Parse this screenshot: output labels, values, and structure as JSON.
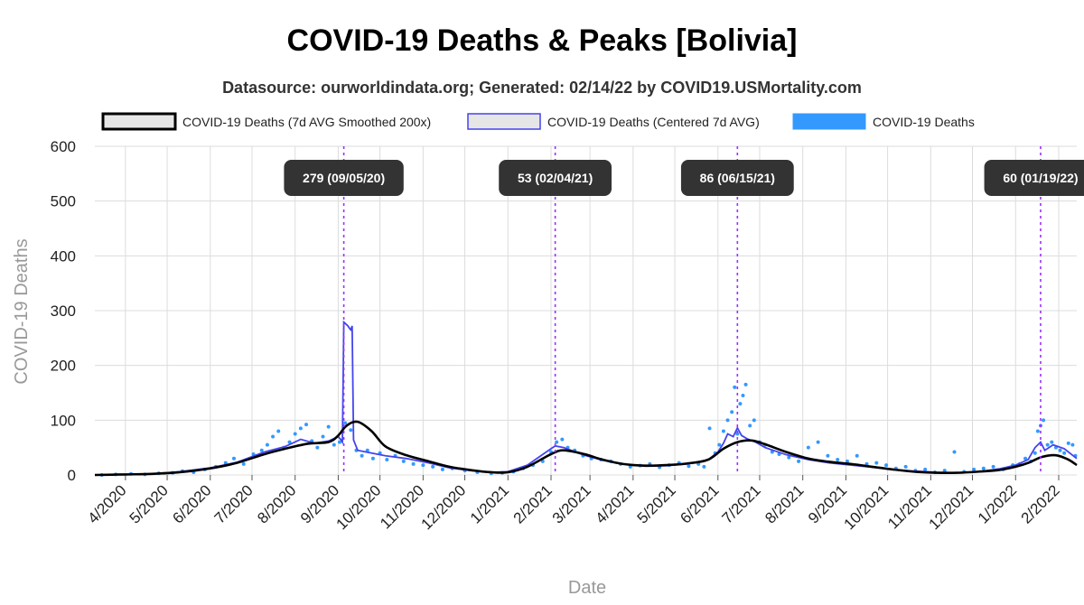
{
  "chart_data": {
    "type": "line",
    "title": "COVID-19 Deaths & Peaks [Bolivia]",
    "subtitle": "Datasource: ourworldindata.org; Generated: 02/14/22 by COVID19.USMortality.com",
    "xlabel": "Date",
    "ylabel": "COVID-19 Deaths",
    "ylim": [
      0,
      600
    ],
    "yticks": [
      0,
      100,
      200,
      300,
      400,
      500,
      600
    ],
    "xlim": [
      "2020-03-10",
      "2022-02-14"
    ],
    "xticks": [
      {
        "date": "2020-04-01",
        "label": "4/2020"
      },
      {
        "date": "2020-05-01",
        "label": "5/2020"
      },
      {
        "date": "2020-06-01",
        "label": "6/2020"
      },
      {
        "date": "2020-07-01",
        "label": "7/2020"
      },
      {
        "date": "2020-08-01",
        "label": "8/2020"
      },
      {
        "date": "2020-09-01",
        "label": "9/2020"
      },
      {
        "date": "2020-10-01",
        "label": "10/2020"
      },
      {
        "date": "2020-11-01",
        "label": "11/2020"
      },
      {
        "date": "2020-12-01",
        "label": "12/2020"
      },
      {
        "date": "2021-01-01",
        "label": "1/2021"
      },
      {
        "date": "2021-02-01",
        "label": "2/2021"
      },
      {
        "date": "2021-03-01",
        "label": "3/2021"
      },
      {
        "date": "2021-04-01",
        "label": "4/2021"
      },
      {
        "date": "2021-05-01",
        "label": "5/2021"
      },
      {
        "date": "2021-06-01",
        "label": "6/2021"
      },
      {
        "date": "2021-07-01",
        "label": "7/2021"
      },
      {
        "date": "2021-08-01",
        "label": "8/2021"
      },
      {
        "date": "2021-09-01",
        "label": "9/2021"
      },
      {
        "date": "2021-10-01",
        "label": "10/2021"
      },
      {
        "date": "2021-11-01",
        "label": "11/2021"
      },
      {
        "date": "2021-12-01",
        "label": "12/2021"
      },
      {
        "date": "2022-01-01",
        "label": "1/2022"
      },
      {
        "date": "2022-02-01",
        "label": "2/2022"
      }
    ],
    "grid": true,
    "legend": {
      "placement": "top",
      "entries": [
        {
          "label": "COVID-19 Deaths (7d AVG Smoothed 200x)",
          "color": "#000000",
          "fill": "#e6e6e6"
        },
        {
          "label": "COVID-19 Deaths (Centered 7d AVG)",
          "color": "#4444ee",
          "fill": "#e6e6e6"
        },
        {
          "label": "COVID-19 Deaths",
          "color": "#3399ff",
          "fill": "#3399ff"
        }
      ]
    },
    "peaks": [
      {
        "date": "2020-09-05",
        "value": 279,
        "label": "279 (09/05/20)"
      },
      {
        "date": "2021-02-04",
        "value": 53,
        "label": "53 (02/04/21)"
      },
      {
        "date": "2021-06-15",
        "value": 86,
        "label": "86 (06/15/21)"
      },
      {
        "date": "2022-01-19",
        "value": 60,
        "label": "60 (01/19/22)"
      }
    ],
    "series": [
      {
        "name": "COVID-19 Deaths (7d AVG Smoothed 200x)",
        "style": "smooth",
        "color": "#000000",
        "x": [
          "2020-03-10",
          "2020-04-01",
          "2020-04-20",
          "2020-05-10",
          "2020-06-01",
          "2020-06-20",
          "2020-07-10",
          "2020-07-25",
          "2020-08-10",
          "2020-08-25",
          "2020-09-01",
          "2020-09-07",
          "2020-09-15",
          "2020-09-25",
          "2020-10-05",
          "2020-10-20",
          "2020-11-05",
          "2020-11-20",
          "2020-12-05",
          "2020-12-20",
          "2021-01-01",
          "2021-01-15",
          "2021-02-01",
          "2021-02-10",
          "2021-02-25",
          "2021-03-10",
          "2021-03-25",
          "2021-04-10",
          "2021-04-25",
          "2021-05-10",
          "2021-05-25",
          "2021-06-05",
          "2021-06-15",
          "2021-06-25",
          "2021-07-05",
          "2021-07-20",
          "2021-08-05",
          "2021-08-20",
          "2021-09-05",
          "2021-09-20",
          "2021-10-05",
          "2021-10-20",
          "2021-11-05",
          "2021-11-20",
          "2021-12-05",
          "2021-12-20",
          "2022-01-01",
          "2022-01-10",
          "2022-01-20",
          "2022-01-30",
          "2022-02-08",
          "2022-02-14"
        ],
        "y": [
          0,
          1,
          2,
          5,
          12,
          22,
          38,
          48,
          57,
          60,
          72,
          90,
          97,
          80,
          52,
          36,
          25,
          15,
          9,
          5,
          5,
          15,
          38,
          45,
          38,
          28,
          20,
          17,
          18,
          21,
          28,
          48,
          60,
          63,
          56,
          42,
          30,
          24,
          20,
          15,
          10,
          6,
          4,
          4,
          6,
          9,
          15,
          22,
          33,
          36,
          28,
          18
        ]
      },
      {
        "name": "COVID-19 Deaths (Centered 7d AVG)",
        "style": "linear",
        "color": "#4444ee",
        "x": [
          "2020-03-10",
          "2020-04-01",
          "2020-04-20",
          "2020-05-10",
          "2020-06-01",
          "2020-06-20",
          "2020-07-10",
          "2020-07-25",
          "2020-08-05",
          "2020-08-15",
          "2020-08-25",
          "2020-09-01",
          "2020-09-03",
          "2020-09-04",
          "2020-09-05",
          "2020-09-08",
          "2020-09-09",
          "2020-09-10",
          "2020-09-11",
          "2020-09-12",
          "2020-09-15",
          "2020-09-25",
          "2020-10-05",
          "2020-10-20",
          "2020-11-05",
          "2020-11-20",
          "2020-12-05",
          "2020-12-20",
          "2021-01-01",
          "2021-01-15",
          "2021-02-01",
          "2021-02-04",
          "2021-02-10",
          "2021-02-25",
          "2021-03-10",
          "2021-03-25",
          "2021-04-10",
          "2021-04-25",
          "2021-05-10",
          "2021-05-25",
          "2021-06-01",
          "2021-06-05",
          "2021-06-08",
          "2021-06-12",
          "2021-06-15",
          "2021-06-18",
          "2021-06-22",
          "2021-06-28",
          "2021-07-05",
          "2021-07-20",
          "2021-08-05",
          "2021-08-20",
          "2021-09-05",
          "2021-09-20",
          "2021-10-05",
          "2021-10-20",
          "2021-11-05",
          "2021-11-20",
          "2021-12-05",
          "2021-12-20",
          "2022-01-01",
          "2022-01-10",
          "2022-01-15",
          "2022-01-19",
          "2022-01-22",
          "2022-01-28",
          "2022-02-05",
          "2022-02-14"
        ],
        "y": [
          0,
          1,
          2,
          6,
          13,
          23,
          42,
          52,
          65,
          58,
          62,
          70,
          64,
          60,
          279,
          272,
          268,
          265,
          272,
          64,
          45,
          40,
          35,
          30,
          22,
          13,
          8,
          5,
          6,
          18,
          48,
          53,
          50,
          36,
          27,
          20,
          16,
          17,
          20,
          28,
          42,
          58,
          75,
          70,
          86,
          72,
          66,
          60,
          50,
          37,
          28,
          22,
          18,
          14,
          10,
          7,
          5,
          4,
          6,
          11,
          18,
          28,
          50,
          60,
          45,
          55,
          48,
          30
        ]
      },
      {
        "name": "COVID-19 Deaths",
        "style": "scatter",
        "color": "#3399ff",
        "x": [
          "2020-03-15",
          "2020-03-25",
          "2020-04-05",
          "2020-04-15",
          "2020-04-25",
          "2020-05-05",
          "2020-05-12",
          "2020-05-20",
          "2020-05-28",
          "2020-06-05",
          "2020-06-12",
          "2020-06-18",
          "2020-06-25",
          "2020-07-02",
          "2020-07-08",
          "2020-07-12",
          "2020-07-16",
          "2020-07-20",
          "2020-07-24",
          "2020-07-28",
          "2020-08-01",
          "2020-08-05",
          "2020-08-09",
          "2020-08-13",
          "2020-08-17",
          "2020-08-21",
          "2020-08-25",
          "2020-08-29",
          "2020-09-02",
          "2020-09-06",
          "2020-09-10",
          "2020-09-14",
          "2020-09-18",
          "2020-09-22",
          "2020-09-26",
          "2020-10-01",
          "2020-10-06",
          "2020-10-12",
          "2020-10-18",
          "2020-10-25",
          "2020-11-01",
          "2020-11-08",
          "2020-11-15",
          "2020-11-22",
          "2020-12-01",
          "2020-12-10",
          "2020-12-20",
          "2020-12-28",
          "2021-01-05",
          "2021-01-12",
          "2021-01-19",
          "2021-01-26",
          "2021-02-01",
          "2021-02-05",
          "2021-02-09",
          "2021-02-13",
          "2021-02-18",
          "2021-02-24",
          "2021-03-02",
          "2021-03-09",
          "2021-03-16",
          "2021-03-23",
          "2021-03-30",
          "2021-04-06",
          "2021-04-13",
          "2021-04-20",
          "2021-04-27",
          "2021-05-04",
          "2021-05-11",
          "2021-05-18",
          "2021-05-22",
          "2021-05-26",
          "2021-05-30",
          "2021-06-02",
          "2021-06-05",
          "2021-06-08",
          "2021-06-11",
          "2021-06-13",
          "2021-06-15",
          "2021-06-17",
          "2021-06-19",
          "2021-06-21",
          "2021-06-24",
          "2021-06-27",
          "2021-07-01",
          "2021-07-05",
          "2021-07-10",
          "2021-07-15",
          "2021-07-22",
          "2021-07-29",
          "2021-08-05",
          "2021-08-12",
          "2021-08-19",
          "2021-08-26",
          "2021-09-02",
          "2021-09-09",
          "2021-09-16",
          "2021-09-23",
          "2021-09-30",
          "2021-10-07",
          "2021-10-14",
          "2021-10-21",
          "2021-10-28",
          "2021-11-04",
          "2021-11-11",
          "2021-11-18",
          "2021-11-25",
          "2021-12-02",
          "2021-12-09",
          "2021-12-16",
          "2021-12-23",
          "2021-12-30",
          "2022-01-04",
          "2022-01-08",
          "2022-01-12",
          "2022-01-15",
          "2022-01-17",
          "2022-01-19",
          "2022-01-21",
          "2022-01-24",
          "2022-01-27",
          "2022-01-30",
          "2022-02-02",
          "2022-02-05",
          "2022-02-08",
          "2022-02-11",
          "2022-02-13"
        ],
        "y": [
          0,
          1,
          2,
          1,
          3,
          4,
          7,
          5,
          10,
          15,
          22,
          30,
          20,
          38,
          45,
          55,
          70,
          80,
          50,
          60,
          75,
          85,
          92,
          62,
          50,
          70,
          88,
          55,
          60,
          95,
          82,
          45,
          35,
          45,
          30,
          40,
          28,
          35,
          25,
          20,
          18,
          15,
          10,
          12,
          8,
          5,
          3,
          4,
          6,
          12,
          18,
          25,
          42,
          60,
          65,
          50,
          45,
          35,
          30,
          28,
          25,
          20,
          15,
          17,
          20,
          14,
          18,
          22,
          16,
          20,
          15,
          85,
          40,
          55,
          80,
          100,
          115,
          160,
          75,
          130,
          145,
          165,
          90,
          100,
          60,
          55,
          42,
          38,
          32,
          25,
          50,
          60,
          35,
          28,
          25,
          35,
          20,
          22,
          18,
          12,
          15,
          8,
          10,
          5,
          8,
          42,
          6,
          10,
          12,
          15,
          10,
          18,
          20,
          30,
          25,
          40,
          80,
          90,
          100,
          55,
          60,
          50,
          45,
          40,
          58,
          55,
          35
        ]
      }
    ]
  }
}
